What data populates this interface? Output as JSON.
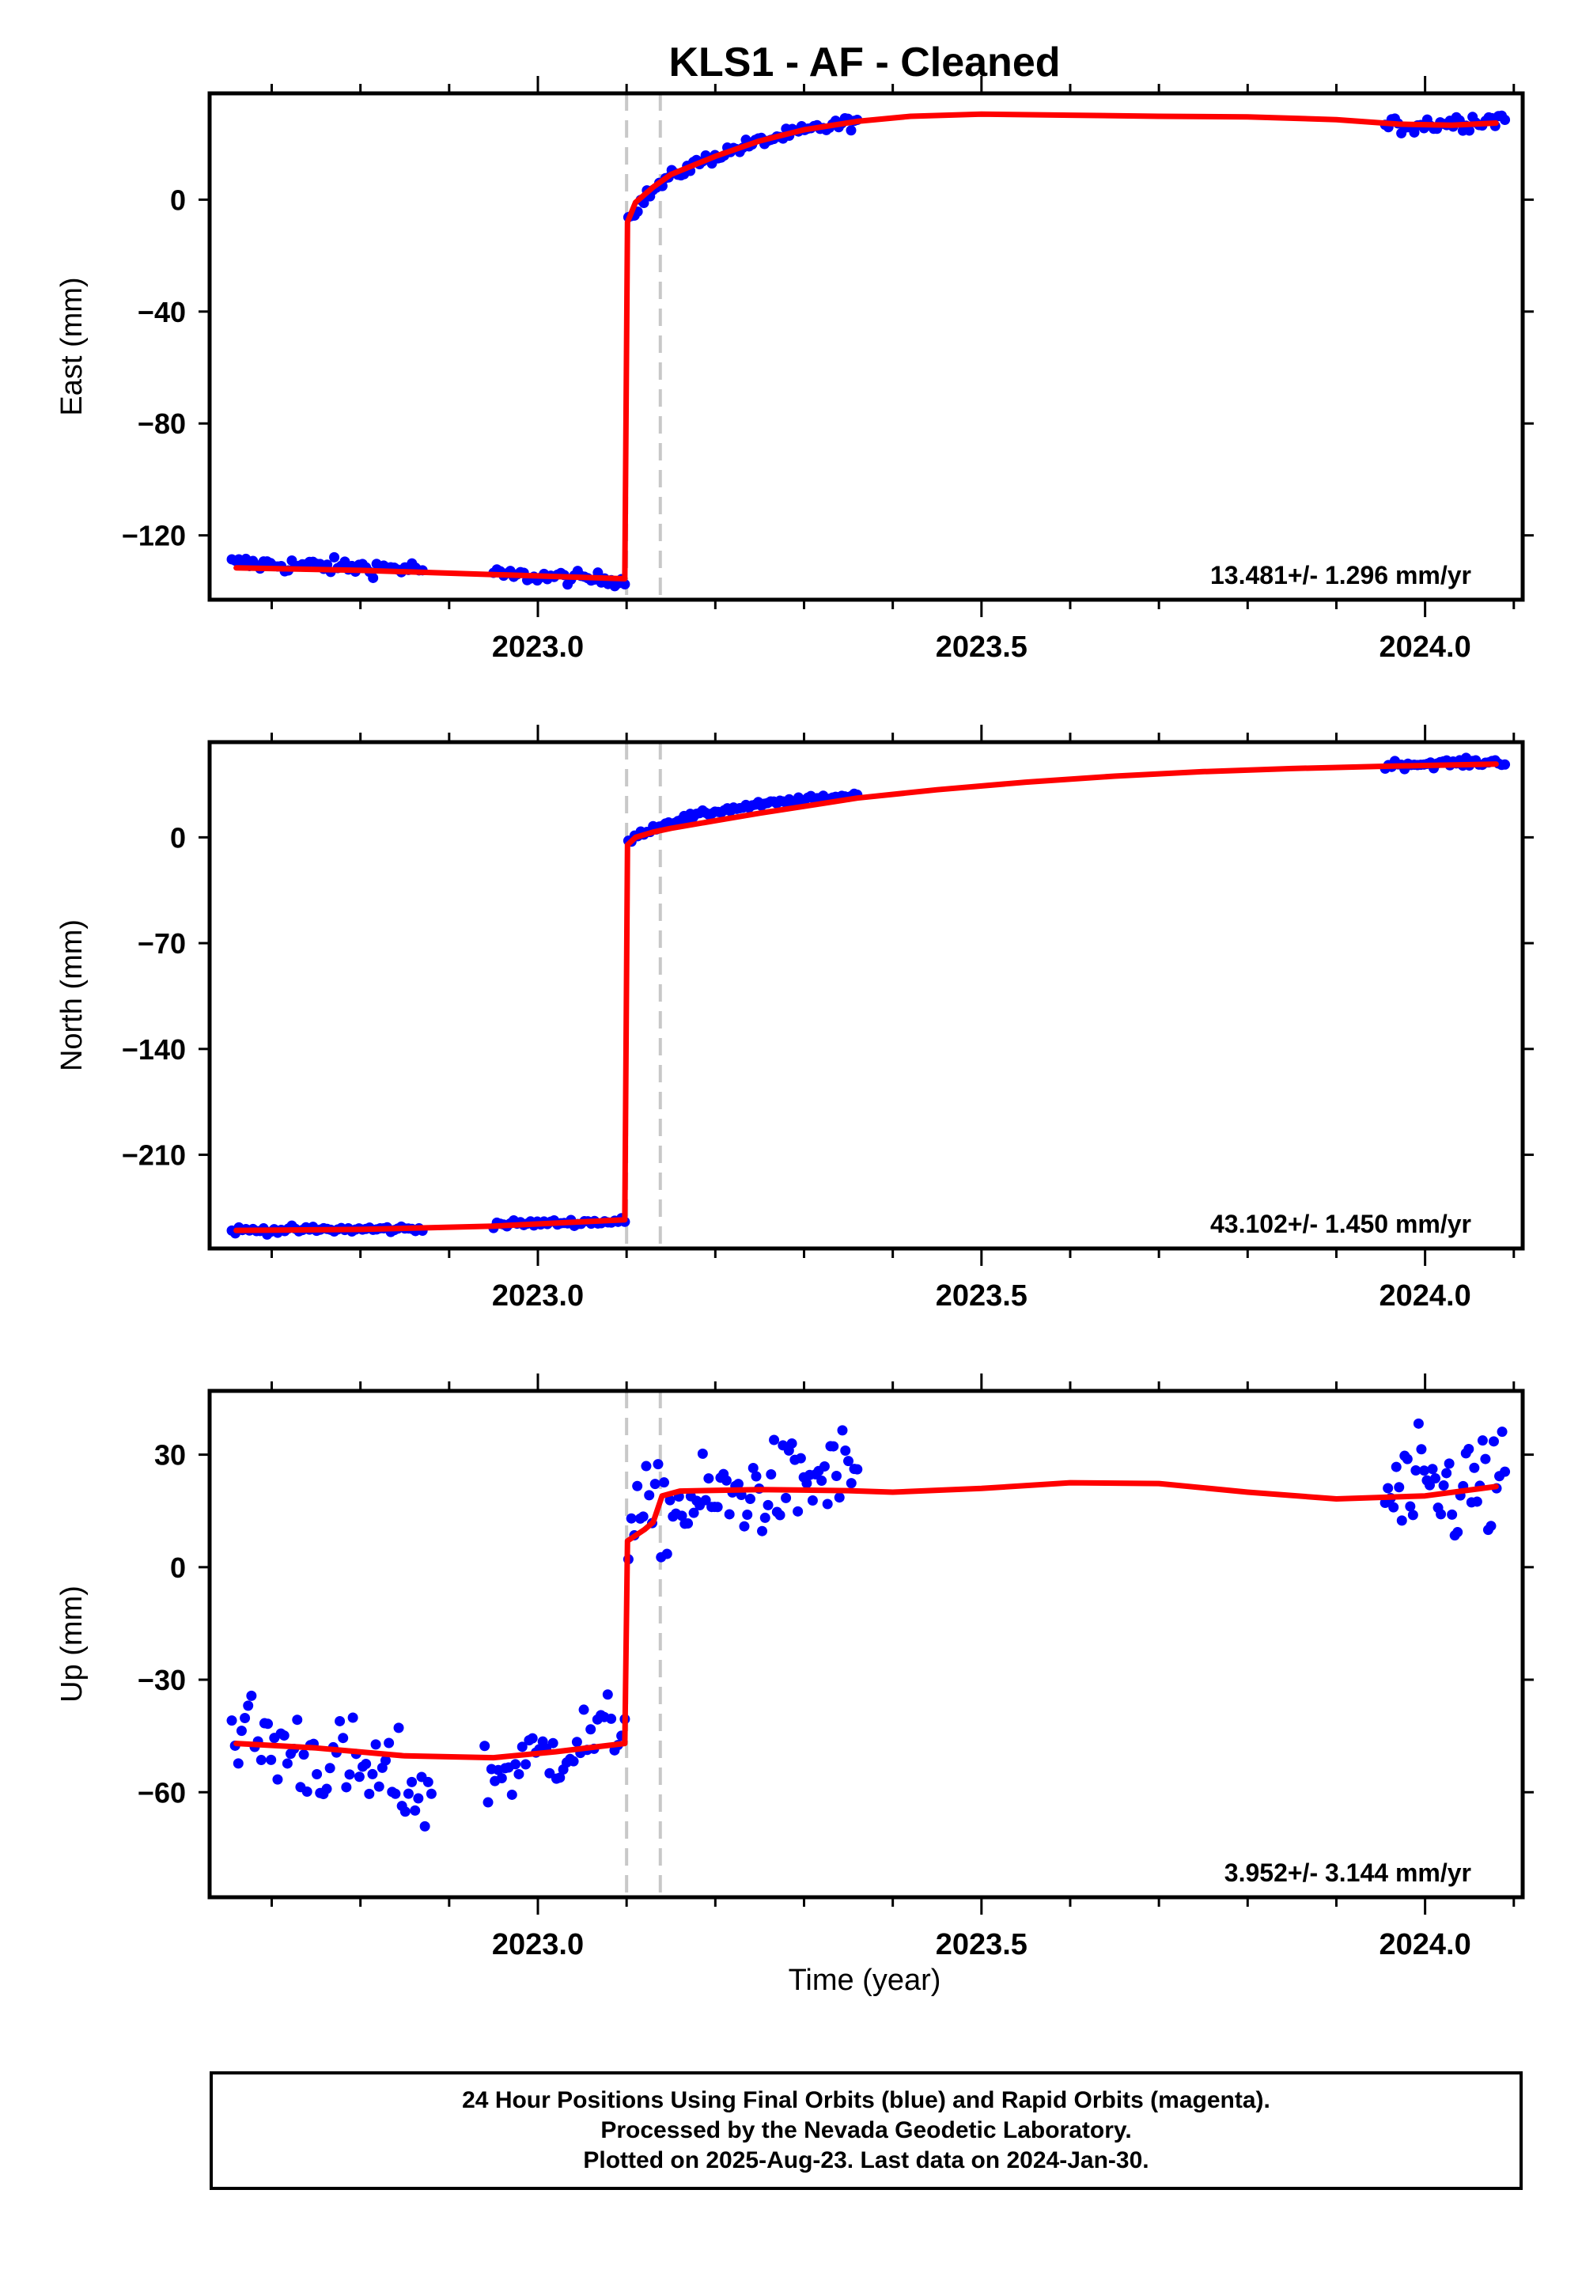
{
  "title": "KLS1  - AF - Cleaned",
  "x_axis_label": "Time (year)",
  "colors": {
    "observed": "#0000ff",
    "model": "#ff0000",
    "event_line": "#c8c8c8",
    "frame": "#000000"
  },
  "footer": {
    "line1": "24 Hour Positions Using Final Orbits (blue) and Rapid Orbits (magenta).",
    "line2": "Processed by the Nevada Geodetic Laboratory.",
    "line3": "Plotted on 2025-Aug-23. Last data on 2024-Jan-30."
  },
  "chart_data": [
    {
      "type": "scatter",
      "ylabel": "East (mm)",
      "xlim": [
        2022.63,
        2024.11
      ],
      "ylim": [
        -143,
        38
      ],
      "yticks": [
        0,
        -40,
        -80,
        -120
      ],
      "xticks": [
        "2023.0",
        "2023.5",
        "2024.0"
      ],
      "event_lines": [
        2023.1,
        2023.138
      ],
      "rate": "13.481+/- 1.296 mm/yr",
      "series": [
        {
          "role": "observed",
          "segments": [
            {
              "x0": 2022.655,
              "x1": 2022.87,
              "y0": -130,
              "y1": -132,
              "noise": 2.0,
              "n": 55
            },
            {
              "x0": 2022.95,
              "x1": 2023.098,
              "y0": -134,
              "y1": -136,
              "noise": 1.6,
              "n": 40
            },
            {
              "x0": 2023.102,
              "x1": 2023.36,
              "y0": -7,
              "y1": 28,
              "shape": "log",
              "noise": 1.6,
              "n": 75
            },
            {
              "x0": 2023.955,
              "x1": 2024.09,
              "y0": 26,
              "y1": 29,
              "noise": 2.2,
              "n": 38
            }
          ]
        },
        {
          "role": "model",
          "points": [
            [
              2022.66,
              -131.6
            ],
            [
              2022.8,
              -132.5
            ],
            [
              2022.95,
              -134
            ],
            [
              2023.098,
              -135.5
            ],
            [
              2023.101,
              -8
            ],
            [
              2023.11,
              -1
            ],
            [
              2023.13,
              4.5
            ],
            [
              2023.15,
              9
            ],
            [
              2023.2,
              15.5
            ],
            [
              2023.25,
              21
            ],
            [
              2023.3,
              25
            ],
            [
              2023.36,
              28
            ],
            [
              2023.42,
              29.8
            ],
            [
              2023.5,
              30.6
            ],
            [
              2023.6,
              30.2
            ],
            [
              2023.7,
              29.8
            ],
            [
              2023.8,
              29.6
            ],
            [
              2023.9,
              28.6
            ],
            [
              2023.97,
              27
            ],
            [
              2024.03,
              26.6
            ],
            [
              2024.08,
              27.4
            ]
          ]
        }
      ]
    },
    {
      "type": "scatter",
      "ylabel": "North (mm)",
      "xlim": [
        2022.63,
        2024.11
      ],
      "ylim": [
        -272,
        63
      ],
      "yticks": [
        0,
        -70,
        -140,
        -210
      ],
      "xticks": [
        "2023.0",
        "2023.5",
        "2024.0"
      ],
      "event_lines": [
        2023.1,
        2023.138
      ],
      "rate": "43.102+/- 1.450 mm/yr",
      "series": [
        {
          "role": "observed",
          "segments": [
            {
              "x0": 2022.655,
              "x1": 2022.87,
              "y0": -260,
              "y1": -259,
              "noise": 1.6,
              "n": 55
            },
            {
              "x0": 2022.95,
              "x1": 2023.098,
              "y0": -256,
              "y1": -254,
              "noise": 1.5,
              "n": 40
            },
            {
              "x0": 2023.102,
              "x1": 2023.36,
              "y0": -3,
              "y1": 28,
              "shape": "log",
              "noise": 1.4,
              "n": 75
            },
            {
              "x0": 2023.955,
              "x1": 2024.09,
              "y0": 48,
              "y1": 50,
              "noise": 1.8,
              "n": 38
            }
          ]
        },
        {
          "role": "model",
          "points": [
            [
              2022.66,
              -260
            ],
            [
              2022.8,
              -259.4
            ],
            [
              2022.95,
              -257.2
            ],
            [
              2023.098,
              -253
            ],
            [
              2023.101,
              -5
            ],
            [
              2023.11,
              0
            ],
            [
              2023.13,
              3.5
            ],
            [
              2023.15,
              6
            ],
            [
              2023.2,
              11
            ],
            [
              2023.25,
              16
            ],
            [
              2023.3,
              20.5
            ],
            [
              2023.36,
              26
            ],
            [
              2023.45,
              31.5
            ],
            [
              2023.55,
              36.5
            ],
            [
              2023.65,
              40.5
            ],
            [
              2023.75,
              43.5
            ],
            [
              2023.85,
              45.5
            ],
            [
              2023.95,
              47
            ],
            [
              2024.08,
              48.5
            ]
          ]
        }
      ]
    },
    {
      "type": "scatter",
      "ylabel": "Up (mm)",
      "xlabel": "Time (year)",
      "xlim": [
        2022.63,
        2024.11
      ],
      "ylim": [
        -88,
        47
      ],
      "yticks": [
        30,
        0,
        -30,
        -60
      ],
      "xticks": [
        "2023.0",
        "2023.5",
        "2024.0"
      ],
      "event_lines": [
        2023.1,
        2023.138
      ],
      "rate": "3.952+/- 3.144 mm/yr",
      "series": [
        {
          "role": "observed",
          "segments": [
            {
              "x0": 2022.655,
              "x1": 2022.88,
              "y0": -44,
              "y1": -60,
              "noise": 9.0,
              "n": 62
            },
            {
              "x0": 2022.94,
              "x1": 2023.098,
              "y0": -56,
              "y1": -42,
              "noise": 7.0,
              "n": 42
            },
            {
              "x0": 2023.102,
              "x1": 2023.36,
              "y0": 13,
              "y1": 26,
              "noise": 8.5,
              "n": 78
            },
            {
              "x0": 2023.955,
              "x1": 2024.09,
              "y0": 18,
              "y1": 22,
              "noise": 11.0,
              "n": 44
            }
          ]
        },
        {
          "role": "model",
          "points": [
            [
              2022.66,
              -47
            ],
            [
              2022.75,
              -48.2
            ],
            [
              2022.85,
              -50.3
            ],
            [
              2022.95,
              -50.8
            ],
            [
              2023.02,
              -49.2
            ],
            [
              2023.098,
              -47
            ],
            [
              2023.101,
              7
            ],
            [
              2023.12,
              10
            ],
            [
              2023.13,
              12
            ],
            [
              2023.14,
              19
            ],
            [
              2023.16,
              20.3
            ],
            [
              2023.25,
              20.7
            ],
            [
              2023.35,
              20.4
            ],
            [
              2023.4,
              20
            ],
            [
              2023.5,
              21
            ],
            [
              2023.6,
              22.5
            ],
            [
              2023.7,
              22.3
            ],
            [
              2023.8,
              20
            ],
            [
              2023.9,
              18.2
            ],
            [
              2024.0,
              19
            ],
            [
              2024.08,
              21.5
            ]
          ]
        }
      ]
    }
  ]
}
